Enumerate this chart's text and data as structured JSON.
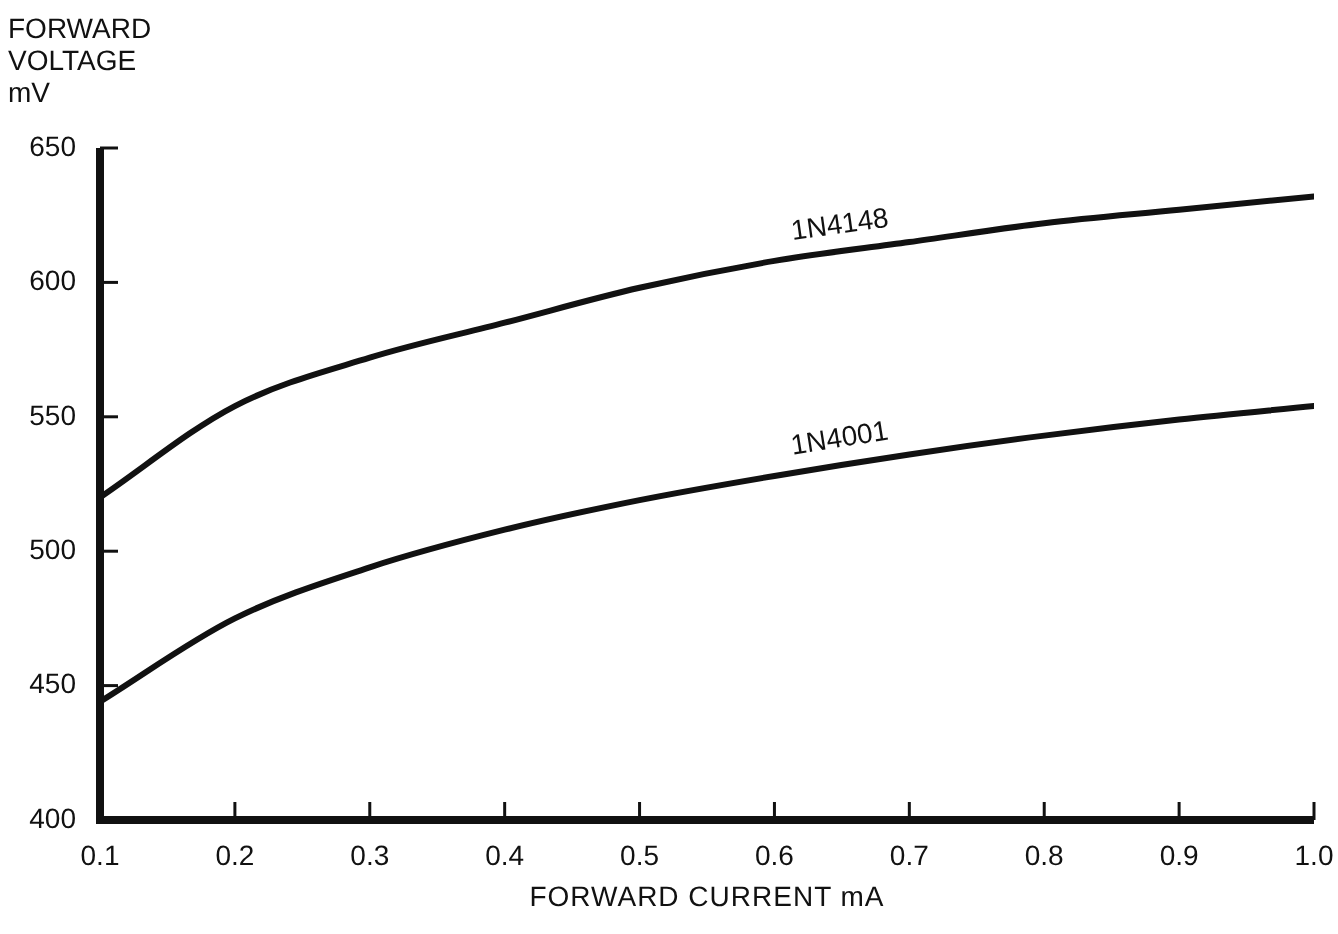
{
  "chart_data": {
    "type": "line",
    "xlabel": "FORWARD CURRENT mA",
    "ylabel": "FORWARD VOLTAGE mV",
    "x": [
      0.1,
      0.2,
      0.3,
      0.4,
      0.5,
      0.6,
      0.7,
      0.8,
      0.9,
      1.0
    ],
    "series": [
      {
        "name": "1N4148",
        "color": "#111111",
        "values": [
          520,
          554,
          572,
          585,
          598,
          608,
          615,
          622,
          627,
          632
        ]
      },
      {
        "name": "1N4001",
        "color": "#111111",
        "values": [
          444,
          475,
          494,
          508,
          519,
          528,
          536,
          543,
          549,
          554
        ]
      }
    ],
    "xlim": [
      0.1,
      1.0
    ],
    "xticks": [
      {
        "value": 0.1,
        "label": "0.1"
      },
      {
        "value": 0.2,
        "label": "0.2"
      },
      {
        "value": 0.3,
        "label": "0.3"
      },
      {
        "value": 0.4,
        "label": "0.4"
      },
      {
        "value": 0.5,
        "label": "0.5"
      },
      {
        "value": 0.6,
        "label": "0.6"
      },
      {
        "value": 0.7,
        "label": "0.7"
      },
      {
        "value": 0.8,
        "label": "0.8"
      },
      {
        "value": 0.9,
        "label": "0.9"
      },
      {
        "value": 1.0,
        "label": "1.0"
      }
    ],
    "ylim": [
      400,
      650
    ],
    "yticks": [
      400,
      450,
      500,
      550,
      600,
      650
    ],
    "grid": false,
    "legend": false,
    "marker": "none",
    "line_style": "solid"
  }
}
